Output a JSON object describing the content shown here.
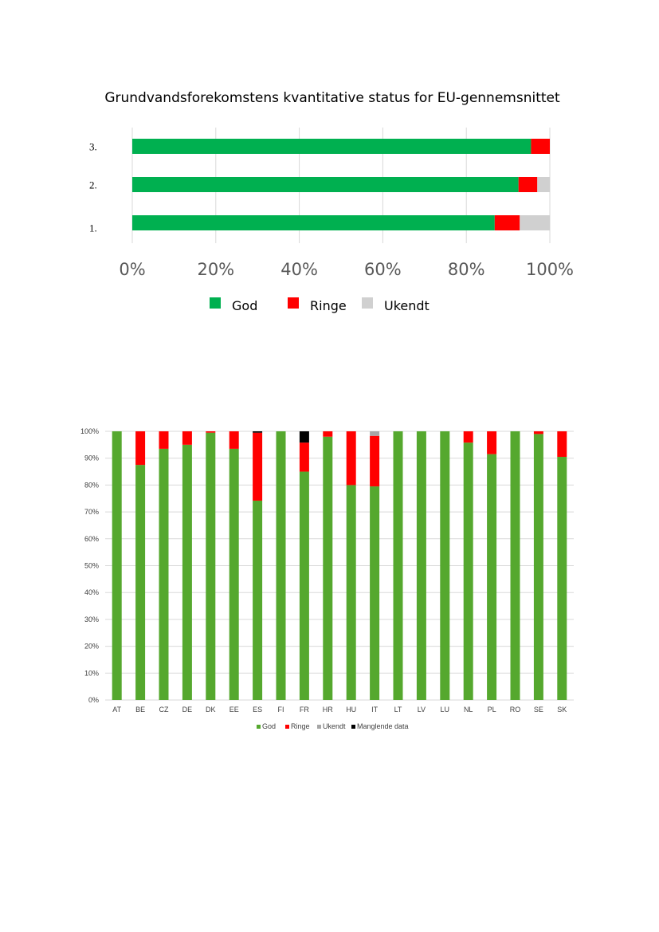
{
  "chart_data": [
    {
      "type": "bar",
      "orientation": "horizontal",
      "stacked": true,
      "normalized": true,
      "title": "Grundvandsforekomstens kvantitative status for EU-gennemsnittet",
      "categories": [
        "3.",
        "2.",
        "1."
      ],
      "series": [
        {
          "name": "God",
          "color": "#00b050",
          "values": [
            95.5,
            92.5,
            86.8
          ]
        },
        {
          "name": "Ringe",
          "color": "#ff0000",
          "values": [
            4.5,
            4.5,
            6.0
          ]
        },
        {
          "name": "Ukendt",
          "color": "#d0d0d0",
          "values": [
            0.0,
            3.0,
            7.2
          ]
        }
      ],
      "x_ticks": [
        "0%",
        "20%",
        "40%",
        "60%",
        "80%",
        "100%"
      ],
      "xlim": [
        0,
        100
      ],
      "grid": true,
      "legend": "bottom"
    },
    {
      "type": "bar",
      "orientation": "vertical",
      "stacked": true,
      "normalized": true,
      "categories": [
        "AT",
        "BE",
        "CZ",
        "DE",
        "DK",
        "EE",
        "ES",
        "FI",
        "FR",
        "HR",
        "HU",
        "IT",
        "LT",
        "LV",
        "LU",
        "NL",
        "PL",
        "RO",
        "SE",
        "SK"
      ],
      "series": [
        {
          "name": "God",
          "color": "#55a82e",
          "values": [
            100,
            87.5,
            93.5,
            95,
            99.5,
            93.5,
            74.2,
            100,
            85,
            98,
            80,
            79.5,
            100,
            100,
            100,
            95.8,
            91.5,
            100,
            99,
            90.5
          ]
        },
        {
          "name": "Ringe",
          "color": "#ff0000",
          "values": [
            0,
            12.5,
            6.5,
            5,
            0.5,
            6.5,
            25.3,
            0,
            10.8,
            2,
            20,
            18.8,
            0,
            0,
            0,
            4.2,
            8.5,
            0,
            1,
            9.5
          ]
        },
        {
          "name": "Ukendt",
          "color": "#a6a6a6",
          "values": [
            0,
            0,
            0,
            0,
            0,
            0,
            0,
            0,
            0,
            0,
            0,
            1.7,
            0,
            0,
            0,
            0,
            0,
            0,
            0,
            0
          ]
        },
        {
          "name": "Manglende data",
          "color": "#000000",
          "values": [
            0,
            0,
            0,
            0,
            0,
            0,
            0.5,
            0,
            4.2,
            0,
            0,
            0,
            0,
            0,
            0,
            0,
            0,
            0,
            0,
            0
          ]
        }
      ],
      "y_ticks": [
        "0%",
        "10%",
        "20%",
        "30%",
        "40%",
        "50%",
        "60%",
        "70%",
        "80%",
        "90%",
        "100%"
      ],
      "ylim": [
        0,
        100
      ],
      "grid": true,
      "legend": "bottom"
    }
  ]
}
